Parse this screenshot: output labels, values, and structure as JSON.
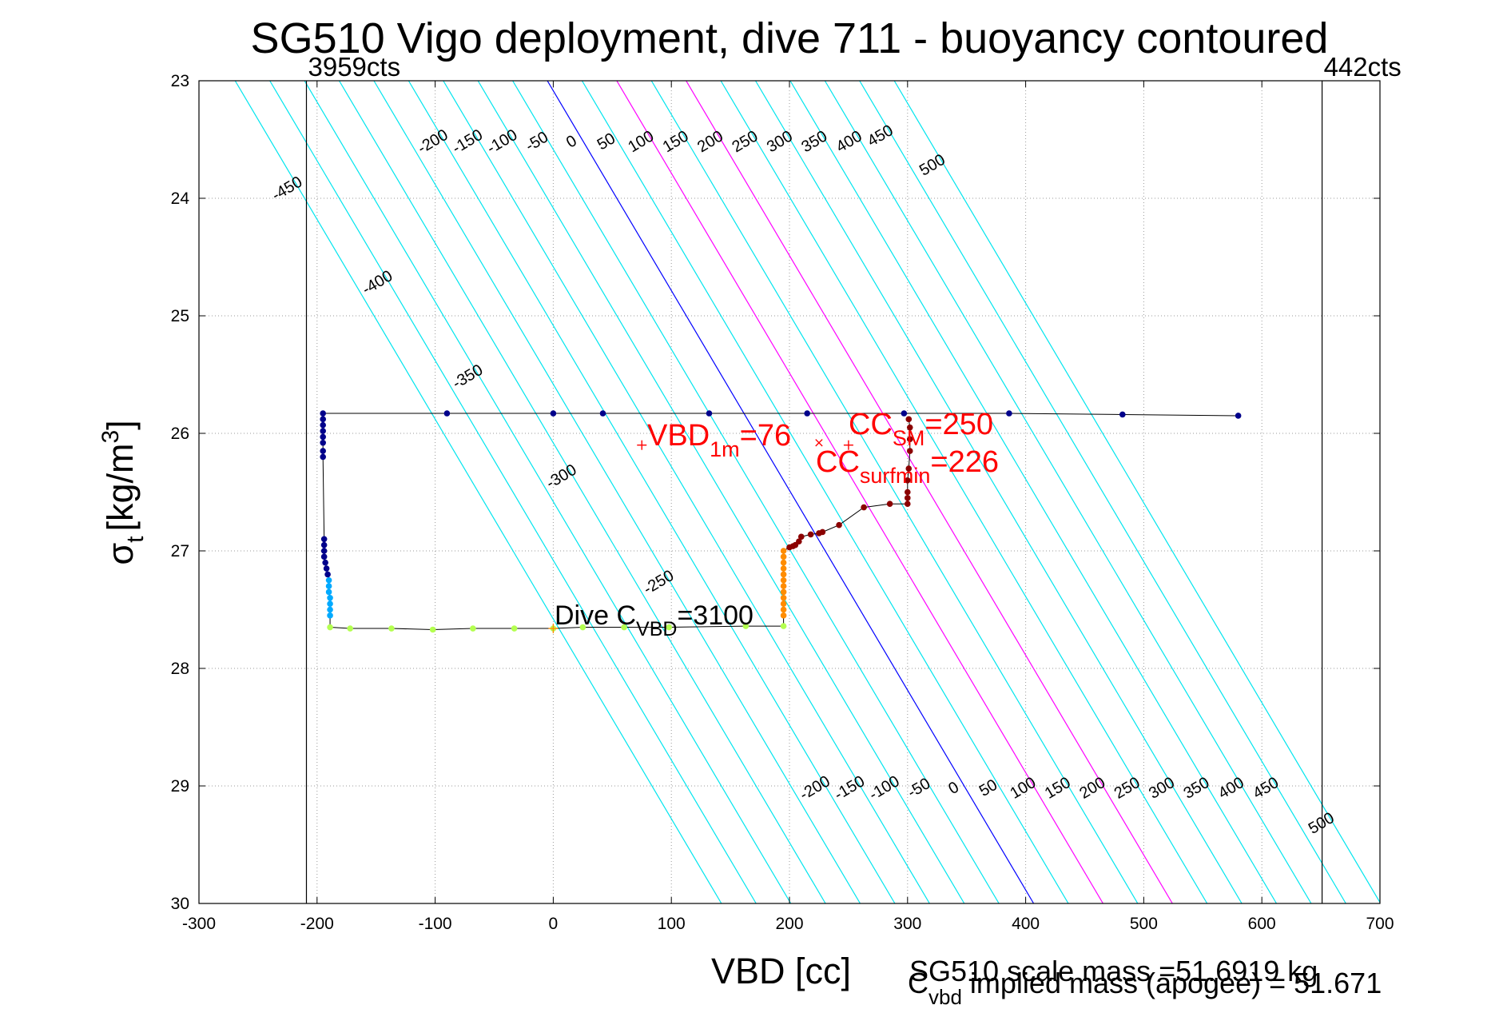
{
  "chart_data": {
    "type": "scatter",
    "title": "SG510 Vigo deployment, dive 711 - buoyancy contoured",
    "xlabel": "VBD [cc]",
    "ylabel": {
      "main": "σ",
      "sub": "t",
      "unit": "[kg/m",
      "sup": "3",
      "close": "]"
    },
    "xlim": [
      -300,
      700
    ],
    "ylim": [
      23,
      30
    ],
    "y_reversed": true,
    "grid": true,
    "xticks": [
      "-300",
      "-200",
      "-100",
      "0",
      "100",
      "200",
      "300",
      "400",
      "500",
      "600",
      "700"
    ],
    "yticks": [
      "23",
      "24",
      "25",
      "26",
      "27",
      "28",
      "29",
      "30"
    ],
    "xtick_values": [
      -300,
      -200,
      -100,
      0,
      100,
      200,
      300,
      400,
      500,
      600,
      700
    ],
    "ytick_values": [
      23,
      24,
      25,
      26,
      27,
      28,
      29,
      30
    ],
    "limit_lines": [
      {
        "x": -209,
        "label": "3959cts"
      },
      {
        "x": 651,
        "label": "442cts"
      }
    ],
    "buoyancy_contours": {
      "values": [
        -450,
        -400,
        -350,
        -300,
        -250,
        -200,
        -150,
        -100,
        -50,
        0,
        50,
        100,
        150,
        200,
        250,
        300,
        350,
        400,
        450,
        500
      ],
      "zero_color": "#0000ff",
      "highlight_values": [
        100,
        200
      ],
      "highlight_color": "#ff00ff",
      "color": "#00e5ee",
      "labels_top": [
        "-450",
        "-400",
        "-350",
        "-300",
        "-250",
        "-200",
        "-150",
        "-100",
        "-50",
        "0",
        "50",
        "100",
        "150",
        "200",
        "250",
        "300",
        "350",
        "400",
        "450",
        "500"
      ],
      "labels_bottom": [
        "-200",
        "-150",
        "-100",
        "-50",
        "0",
        "50",
        "100",
        "150",
        "200",
        "250",
        "300",
        "350",
        "400",
        "450",
        "500"
      ]
    },
    "series": [
      {
        "color": "#00008b",
        "points": [
          [
            580,
            25.85
          ],
          [
            482,
            25.84
          ],
          [
            386,
            25.83
          ],
          [
            297,
            25.83
          ],
          [
            215,
            25.83
          ],
          [
            132,
            25.83
          ],
          [
            42,
            25.83
          ],
          [
            0,
            25.83
          ],
          [
            -90,
            25.83
          ],
          [
            -195,
            25.83
          ],
          [
            -195,
            25.88
          ],
          [
            -195,
            25.93
          ],
          [
            -195,
            25.98
          ],
          [
            -195,
            26.03
          ],
          [
            -195,
            26.08
          ],
          [
            -195,
            26.15
          ],
          [
            -195,
            26.2
          ],
          [
            -194,
            26.9
          ],
          [
            -194,
            26.95
          ],
          [
            -194,
            27.0
          ],
          [
            -194,
            27.05
          ],
          [
            -193,
            27.1
          ],
          [
            -192,
            27.15
          ],
          [
            -191,
            27.2
          ]
        ]
      },
      {
        "color": "#00aaff",
        "points": [
          [
            -190,
            27.25
          ],
          [
            -190,
            27.3
          ],
          [
            -190,
            27.35
          ],
          [
            -189,
            27.4
          ],
          [
            -189,
            27.45
          ],
          [
            -189,
            27.5
          ],
          [
            -189,
            27.55
          ]
        ]
      },
      {
        "color": "#b4ff50",
        "points": [
          [
            -189,
            27.65
          ],
          [
            -172,
            27.66
          ],
          [
            -137,
            27.66
          ],
          [
            -102,
            27.67
          ],
          [
            -68,
            27.66
          ],
          [
            -33,
            27.66
          ],
          [
            0,
            27.66
          ],
          [
            25,
            27.65
          ],
          [
            60,
            27.65
          ],
          [
            98,
            27.65
          ],
          [
            163,
            27.64
          ],
          [
            195,
            27.64
          ]
        ]
      },
      {
        "color": "#ff8c00",
        "points": [
          [
            195,
            27.0
          ],
          [
            195,
            27.05
          ],
          [
            195,
            27.1
          ],
          [
            195,
            27.15
          ],
          [
            195,
            27.2
          ],
          [
            195,
            27.25
          ],
          [
            195,
            27.3
          ],
          [
            195,
            27.35
          ],
          [
            195,
            27.4
          ],
          [
            195,
            27.45
          ],
          [
            195,
            27.5
          ],
          [
            195,
            27.55
          ]
        ]
      },
      {
        "color": "#8b0000",
        "points": [
          [
            200,
            26.97
          ],
          [
            203,
            26.96
          ],
          [
            205,
            26.95
          ],
          [
            208,
            26.92
          ],
          [
            210,
            26.88
          ],
          [
            218,
            26.86
          ],
          [
            225,
            26.85
          ],
          [
            228,
            26.84
          ],
          [
            242,
            26.78
          ],
          [
            263,
            26.63
          ],
          [
            285,
            26.6
          ],
          [
            300,
            26.6
          ],
          [
            300,
            26.55
          ],
          [
            300,
            26.5
          ],
          [
            300,
            26.4
          ],
          [
            301,
            26.3
          ],
          [
            302,
            26.15
          ],
          [
            302,
            26.05
          ],
          [
            302,
            25.95
          ],
          [
            301,
            25.88
          ]
        ]
      }
    ],
    "markers": [
      {
        "x": 75,
        "y": 26.1,
        "symbol": "+",
        "color": "#ff0000"
      },
      {
        "x": 225,
        "y": 26.08,
        "symbol": "x",
        "color": "#ff0000"
      },
      {
        "x": 250,
        "y": 26.1,
        "symbol": "+",
        "color": "#ff0000"
      },
      {
        "x": 0,
        "y": 27.66,
        "symbol": "+",
        "color": "#ff8c00"
      }
    ],
    "annotations": {
      "vbd1m": {
        "main": "VBD",
        "sub": "1m",
        "value": "=76"
      },
      "ccsm": {
        "main": "CC",
        "sub": "SM",
        "value": "=250"
      },
      "ccsurf": {
        "main": "CC",
        "sub": "surfmin",
        "value": "=226"
      },
      "divec": {
        "main": "Dive C",
        "sub": "VBD",
        "value": "=3100"
      }
    },
    "footer": {
      "scale_mass": "SG510 scale mass =51.6919 kg",
      "implied_main": "C",
      "implied_sub": "vbd",
      "implied_text": " implied mass (apogee) = 51.671"
    }
  }
}
